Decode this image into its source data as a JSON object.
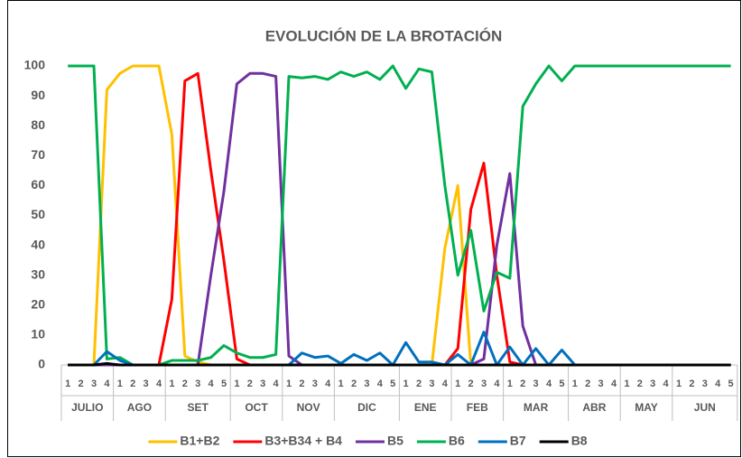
{
  "chart_data": {
    "type": "line",
    "title": "EVOLUCIÓN DE LA BROTACIÓN",
    "categories": [
      "1",
      "2",
      "3",
      "4",
      "1",
      "2",
      "3",
      "4",
      "1",
      "2",
      "3",
      "4",
      "5",
      "1",
      "2",
      "3",
      "4",
      "1",
      "2",
      "3",
      "4",
      "1",
      "2",
      "3",
      "4",
      "5",
      "1",
      "2",
      "3",
      "4",
      "1",
      "2",
      "3",
      "4",
      "1",
      "2",
      "3",
      "4",
      "5",
      "1",
      "2",
      "3",
      "4",
      "1",
      "2",
      "3",
      "4",
      "1",
      "2",
      "3",
      "4",
      "5"
    ],
    "months": [
      "JULIO",
      "AGO",
      "SET",
      "OCT",
      "NOV",
      "DIC",
      "ENE",
      "FEB",
      "MAR",
      "ABR",
      "MAY",
      "JUN"
    ],
    "ylim": [
      0,
      100
    ],
    "yticks": [
      0,
      10,
      20,
      30,
      40,
      50,
      60,
      70,
      80,
      90,
      100
    ],
    "grid": false,
    "legend": "bottom",
    "series": [
      {
        "name": "B1+B2",
        "color": "#ffc000",
        "values": [
          0,
          0,
          0,
          92,
          97.5,
          100,
          100,
          100,
          77,
          3,
          1,
          0,
          0,
          0,
          0,
          0,
          0,
          0,
          0,
          0,
          0,
          0,
          0,
          0,
          0,
          0,
          0,
          0,
          0,
          39,
          60,
          0,
          0,
          0,
          0,
          0,
          0,
          0,
          0,
          0,
          0,
          0,
          0,
          0,
          0,
          0,
          0,
          0,
          0,
          0,
          0,
          0
        ]
      },
      {
        "name": "B3+B34 + B4",
        "color": "#ff0000",
        "values": [
          0,
          0,
          0,
          0,
          0,
          0,
          0,
          0,
          22,
          95,
          97.5,
          65,
          35,
          2,
          0,
          0,
          0,
          0,
          0,
          0,
          0,
          0,
          0,
          0,
          0,
          0,
          0,
          0,
          0,
          0,
          5.5,
          52,
          67.5,
          30,
          1,
          0,
          0,
          0,
          0,
          0,
          0,
          0,
          0,
          0,
          0,
          0,
          0,
          0,
          0,
          0,
          0,
          0
        ]
      },
      {
        "name": "B5",
        "color": "#7030a0",
        "values": [
          0,
          0,
          0,
          0,
          0,
          0,
          0,
          0,
          0,
          0,
          0,
          30,
          58,
          94,
          97.5,
          97.5,
          96.5,
          3,
          0,
          0,
          0,
          0,
          0,
          0,
          0,
          0,
          0,
          0,
          0,
          0,
          0,
          0,
          2,
          40,
          64,
          13,
          0,
          0,
          0,
          0,
          0,
          0,
          0,
          0,
          0,
          0,
          0,
          0,
          0,
          0,
          0,
          0
        ]
      },
      {
        "name": "B6",
        "color": "#00b050",
        "values": [
          100,
          100,
          100,
          2,
          2.5,
          0,
          0,
          0,
          1.5,
          1.5,
          1.5,
          2.5,
          6.5,
          4,
          2.5,
          2.5,
          3.5,
          96.5,
          96,
          96.5,
          95.5,
          98,
          96.5,
          98,
          95.5,
          100,
          92.5,
          99,
          98,
          60,
          30,
          45,
          18,
          31,
          29,
          86.5,
          94,
          100,
          95,
          100,
          100,
          100,
          100,
          100,
          100,
          100,
          100,
          100,
          100,
          100,
          100,
          100
        ]
      },
      {
        "name": "B7",
        "color": "#0070c0",
        "values": [
          0,
          0,
          0,
          4.5,
          1.5,
          0,
          0,
          0,
          0,
          0,
          0,
          0,
          0,
          0,
          0,
          0,
          0,
          0,
          4,
          2.5,
          3,
          0.5,
          3.5,
          1.5,
          4,
          0,
          7.5,
          1,
          1,
          0,
          3.5,
          0,
          11,
          0,
          6,
          0,
          5.5,
          0,
          5,
          0,
          0,
          0,
          0,
          0,
          0,
          0,
          0,
          0,
          0,
          0,
          0,
          0
        ]
      },
      {
        "name": "B8",
        "color": "#000000",
        "values": [
          0,
          0,
          0,
          0.5,
          0,
          0,
          0,
          0,
          0,
          0,
          0,
          0,
          0,
          0,
          0,
          0,
          0,
          0,
          0,
          0,
          0,
          0,
          0,
          0,
          0,
          0,
          0,
          0,
          0,
          0,
          0,
          0,
          0,
          0,
          0,
          0,
          0,
          0,
          0,
          0,
          0,
          0,
          0,
          0,
          0,
          0,
          0,
          0,
          0,
          0,
          0,
          0
        ]
      }
    ]
  }
}
